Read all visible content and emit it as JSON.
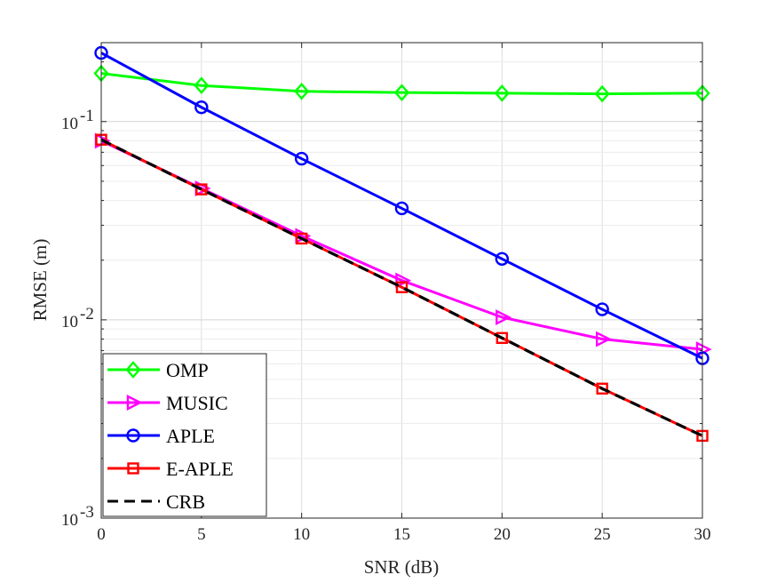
{
  "chart_data": {
    "type": "line",
    "title": "",
    "xlabel": "SNR (dB)",
    "ylabel": "RMSE (m)",
    "x": [
      0,
      5,
      10,
      15,
      20,
      25,
      30
    ],
    "xlim": [
      0,
      30
    ],
    "ylim": [
      0.001,
      0.25
    ],
    "yscale": "log",
    "grid": true,
    "legend_position": "bottom-left",
    "x_ticks": [
      "0",
      "5",
      "10",
      "15",
      "20",
      "25",
      "30"
    ],
    "y_ticks": [
      {
        "value": 0.1,
        "base": "10",
        "exp": "-1"
      },
      {
        "value": 0.01,
        "base": "10",
        "exp": "-2"
      },
      {
        "value": 0.001,
        "base": "10",
        "exp": "-3"
      }
    ],
    "series": [
      {
        "name": "OMP",
        "color": "#00ff00",
        "marker": "diamond",
        "dash": "solid",
        "values": [
          0.175,
          0.152,
          0.142,
          0.14,
          0.139,
          0.138,
          0.139
        ]
      },
      {
        "name": "MUSIC",
        "color": "#ff00ff",
        "marker": "triangle-right",
        "dash": "solid",
        "values": [
          0.08,
          0.046,
          0.0265,
          0.0158,
          0.0103,
          0.008,
          0.0071
        ]
      },
      {
        "name": "APLE",
        "color": "#0000ff",
        "marker": "circle",
        "dash": "solid",
        "values": [
          0.222,
          0.118,
          0.065,
          0.0365,
          0.0203,
          0.0113,
          0.0064
        ]
      },
      {
        "name": "E-APLE",
        "color": "#ff0000",
        "marker": "square",
        "dash": "solid",
        "values": [
          0.081,
          0.0455,
          0.0257,
          0.0146,
          0.0081,
          0.0045,
          0.0026
        ]
      },
      {
        "name": "CRB",
        "color": "#000000",
        "marker": "none",
        "dash": "dashed",
        "values": [
          0.081,
          0.0455,
          0.0257,
          0.0146,
          0.0081,
          0.0045,
          0.0026
        ]
      }
    ]
  }
}
